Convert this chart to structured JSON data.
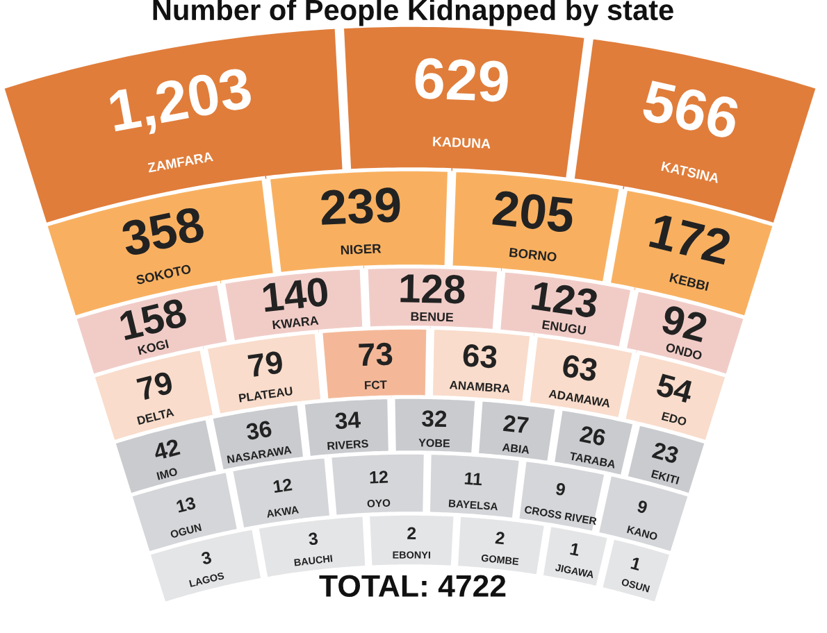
{
  "chart_data": {
    "type": "other",
    "title": "Number of People Kidnapped by state",
    "categories": [
      "ZAMFARA",
      "KADUNA",
      "KATSINA",
      "SOKOTO",
      "NIGER",
      "BORNO",
      "KEBBI",
      "KOGI",
      "KWARA",
      "BENUE",
      "ENUGU",
      "ONDO",
      "DELTA",
      "PLATEAU",
      "FCT",
      "ANAMBRA",
      "ADAMAWA",
      "EDO",
      "IMO",
      "NASARAWA",
      "RIVERS",
      "YOBE",
      "ABIA",
      "TARABA",
      "EKITI",
      "OGUN",
      "AKWA",
      "OYO",
      "BAYELSA",
      "CROSS RIVER",
      "KANO",
      "LAGOS",
      "BAUCHI",
      "EBONYI",
      "GOMBE",
      "JIGAWA",
      "OSUN"
    ],
    "values": [
      1203,
      629,
      566,
      358,
      239,
      205,
      172,
      158,
      140,
      128,
      123,
      92,
      79,
      79,
      73,
      63,
      63,
      54,
      42,
      36,
      34,
      32,
      27,
      26,
      23,
      13,
      12,
      12,
      11,
      9,
      9,
      3,
      3,
      2,
      2,
      1,
      1
    ],
    "colors": [
      "#e07d3b",
      "#e07d3b",
      "#e07d3b",
      "#f8b060",
      "#f8b060",
      "#f8b060",
      "#f8b060",
      "#f1ccc7",
      "#f1ccc7",
      "#f1ccc7",
      "#f1ccc7",
      "#f1ccc7",
      "#f9dccb",
      "#f9dccb",
      "#f4b898",
      "#f9dccb",
      "#f9dccb",
      "#f9dccb",
      "#c9cbcf",
      "#c9cbcf",
      "#c9cbcf",
      "#c9cbcf",
      "#c9cbcf",
      "#c9cbcf",
      "#c9cbcf",
      "#d4d6d9",
      "#d4d6d9",
      "#d4d6d9",
      "#d4d6d9",
      "#d4d6d9",
      "#d4d6d9",
      "#e4e5e7",
      "#e4e5e7",
      "#e4e5e7",
      "#e4e5e7",
      "#e4e5e7",
      "#e4e5e7"
    ],
    "value_labels": [
      "1,203",
      "629",
      "566",
      "358",
      "239",
      "205",
      "172",
      "158",
      "140",
      "128",
      "123",
      "92",
      "79",
      "79",
      "73",
      "63",
      "63",
      "54",
      "42",
      "36",
      "34",
      "32",
      "27",
      "26",
      "23",
      "13",
      "12",
      "12",
      "11",
      "9",
      "9",
      "3",
      "3",
      "2",
      "2",
      "1",
      "1"
    ],
    "annotations": [
      "TOTAL: 4722"
    ]
  }
}
